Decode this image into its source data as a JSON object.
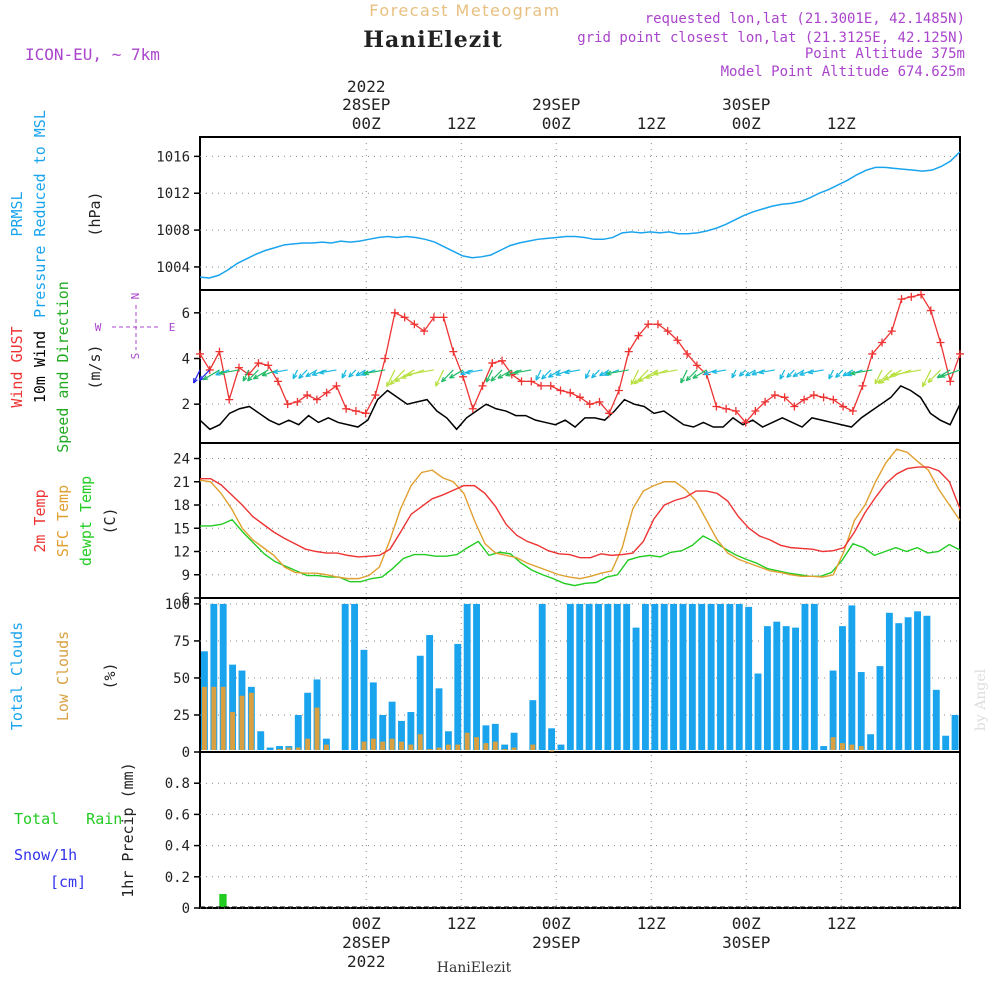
{
  "header": {
    "forecast_title": "Forecast Meteogram",
    "location": "HaniElezit",
    "model": "ICON-EU, ~ 7km",
    "requested": "requested lon,lat (21.3001E, 42.1485N)",
    "gridpoint": "grid point closest lon,lat (21.3125E, 42.125N)",
    "point_alt": "Point Altitude 375m",
    "model_alt": "Model Point Altitude 674.625m",
    "footer": "HaniElezit",
    "credit": "by Angel"
  },
  "time_axis": {
    "start_hour": -21,
    "end_hour": 75,
    "ticks": [
      {
        "h": 0,
        "label": "00Z",
        "date": "28SEP",
        "year": "2022"
      },
      {
        "h": 12,
        "label": "12Z"
      },
      {
        "h": 24,
        "label": "00Z",
        "date": "29SEP"
      },
      {
        "h": 36,
        "label": "12Z"
      },
      {
        "h": 48,
        "label": "00Z",
        "date": "30SEP"
      },
      {
        "h": 60,
        "label": "12Z"
      }
    ]
  },
  "colors": {
    "pressure": "#1aa4ee",
    "gust": "#ee3333",
    "wind": "#000000",
    "dir": "#22aa22",
    "temp": "#ee3333",
    "sfc": "#e0a030",
    "dew": "#22cc22",
    "total_clouds": "#1aa4ee",
    "low_clouds": "#d8a040",
    "rain": "#22cc22",
    "snow": "#3333ee",
    "title": "#e8c080",
    "meta": "#aa44cc"
  },
  "chart_data": [
    {
      "type": "line",
      "id": "pressure",
      "ylabels": [
        "PRMSL",
        "Pressure Reduced to MSL",
        "(hPa)"
      ],
      "yticks": [
        1004,
        1008,
        1012,
        1016
      ],
      "ylim": [
        1001.5,
        1018.1
      ],
      "series": [
        {
          "name": "PRMSL",
          "values": [
            1002.9,
            1002.8,
            1003.1,
            1003.7,
            1004.4,
            1004.9,
            1005.4,
            1005.8,
            1006.1,
            1006.4,
            1006.5,
            1006.6,
            1006.6,
            1006.7,
            1006.6,
            1006.8,
            1006.7,
            1006.8,
            1007.0,
            1007.2,
            1007.3,
            1007.2,
            1007.3,
            1007.2,
            1007.0,
            1006.7,
            1006.2,
            1005.7,
            1005.2,
            1005.0,
            1005.1,
            1005.3,
            1005.8,
            1006.3,
            1006.6,
            1006.8,
            1007.0,
            1007.1,
            1007.2,
            1007.3,
            1007.3,
            1007.2,
            1007.0,
            1007.0,
            1007.2,
            1007.7,
            1007.8,
            1007.7,
            1007.8,
            1007.7,
            1007.8,
            1007.6,
            1007.6,
            1007.7,
            1007.9,
            1008.2,
            1008.6,
            1009.1,
            1009.6,
            1010.0,
            1010.3,
            1010.6,
            1010.8,
            1010.9,
            1011.1,
            1011.5,
            1012.0,
            1012.4,
            1012.9,
            1013.4,
            1014.0,
            1014.5,
            1014.8,
            1014.8,
            1014.7,
            1014.6,
            1014.5,
            1014.4,
            1014.5,
            1014.9,
            1015.5,
            1016.5
          ]
        }
      ]
    },
    {
      "type": "line",
      "id": "wind",
      "ylabels": [
        "Wind GUST",
        "10m Wind",
        "Speed and Direction",
        "(m/s)"
      ],
      "compass": {
        "n": "N",
        "s": "S",
        "w": "W",
        "e": "E"
      },
      "yticks": [
        2,
        4,
        6
      ],
      "ylim": [
        0.3,
        7.0
      ],
      "series": [
        {
          "name": "Wind GUST",
          "values": [
            4.2,
            3.5,
            4.3,
            2.2,
            3.6,
            3.3,
            3.8,
            3.7,
            3.0,
            2.0,
            2.1,
            2.4,
            2.2,
            2.5,
            2.8,
            1.8,
            1.7,
            1.6,
            2.4,
            4.0,
            6.0,
            5.8,
            5.5,
            5.2,
            5.8,
            5.8,
            4.3,
            3.2,
            1.8,
            2.8,
            3.8,
            3.9,
            3.3,
            3.0,
            3.0,
            2.8,
            2.8,
            2.6,
            2.5,
            2.3,
            2.0,
            2.1,
            1.6,
            2.6,
            4.3,
            5.0,
            5.5,
            5.5,
            5.2,
            4.8,
            4.2,
            3.7,
            3.3,
            1.9,
            1.8,
            1.7,
            1.2,
            1.7,
            2.1,
            2.4,
            2.3,
            1.9,
            2.2,
            2.4,
            2.3,
            2.2,
            1.9,
            1.7,
            2.8,
            4.2,
            4.7,
            5.2,
            6.6,
            6.7,
            6.8,
            6.1,
            4.7,
            3.0,
            4.2
          ]
        },
        {
          "name": "10m Wind",
          "values": [
            1.3,
            0.9,
            1.1,
            1.6,
            1.8,
            1.9,
            1.6,
            1.3,
            1.1,
            1.3,
            1.1,
            1.5,
            1.2,
            1.4,
            1.2,
            1.1,
            1.0,
            1.3,
            2.2,
            2.6,
            2.3,
            2.0,
            2.1,
            2.2,
            1.7,
            1.4,
            0.9,
            1.4,
            1.7,
            2.0,
            1.8,
            1.7,
            1.5,
            1.5,
            1.3,
            1.2,
            1.1,
            1.3,
            1.0,
            1.4,
            1.4,
            1.3,
            1.7,
            2.2,
            2.0,
            1.9,
            1.6,
            1.7,
            1.4,
            1.1,
            1.0,
            1.2,
            1.0,
            1.0,
            1.4,
            1.1,
            1.3,
            1.0,
            1.2,
            1.4,
            1.2,
            1.0,
            1.4,
            1.3,
            1.2,
            1.1,
            1.0,
            1.4,
            1.7,
            2.0,
            2.3,
            2.8,
            2.6,
            2.3,
            1.6,
            1.3,
            1.1,
            2.0
          ]
        }
      ],
      "arrows": {
        "y": 3.5,
        "start": -21,
        "step": 1
      }
    },
    {
      "type": "line",
      "id": "temperature",
      "ylabels": [
        "2m Temp",
        "SFC Temp",
        "dewpt Temp",
        "(C)"
      ],
      "yticks": [
        6,
        9,
        12,
        15,
        18,
        21,
        24
      ],
      "ylim": [
        6,
        26
      ],
      "series": [
        {
          "name": "2m Temp",
          "values": [
            21.4,
            21.4,
            20.6,
            19.3,
            18.0,
            16.5,
            15.5,
            14.5,
            13.7,
            13.0,
            12.3,
            12.0,
            11.8,
            11.8,
            11.5,
            11.3,
            11.4,
            11.5,
            12.3,
            14.5,
            16.8,
            17.8,
            18.8,
            19.3,
            19.9,
            20.5,
            20.5,
            19.5,
            17.8,
            15.5,
            14.1,
            13.3,
            12.8,
            12.1,
            11.7,
            11.6,
            11.2,
            11.2,
            11.7,
            11.5,
            11.6,
            11.8,
            13.3,
            16.2,
            18.0,
            18.6,
            19.0,
            19.8,
            19.8,
            19.5,
            18.5,
            16.5,
            15.0,
            14.0,
            13.5,
            12.8,
            12.5,
            12.4,
            12.3,
            12.0,
            12.1,
            12.5,
            14.5,
            17.0,
            19.0,
            20.8,
            22.0,
            22.7,
            22.9,
            22.9,
            22.4,
            21.0,
            17.5
          ]
        },
        {
          "name": "SFC Temp",
          "values": [
            21.2,
            21.0,
            19.5,
            17.5,
            15.0,
            13.5,
            12.5,
            11.5,
            10.0,
            9.3,
            9.2,
            9.2,
            9.0,
            8.7,
            8.5,
            8.5,
            8.9,
            10.0,
            13.5,
            17.5,
            20.5,
            22.2,
            22.5,
            21.5,
            21.0,
            19.5,
            16.0,
            13.0,
            11.8,
            11.5,
            11.2,
            10.5,
            10.0,
            9.5,
            9.0,
            8.7,
            8.5,
            8.8,
            9.2,
            9.5,
            12.5,
            17.5,
            19.8,
            20.5,
            21.0,
            21.0,
            20.0,
            18.5,
            16.0,
            13.5,
            11.8,
            11.0,
            10.5,
            10.0,
            9.5,
            9.3,
            9.0,
            8.8,
            8.8,
            8.7,
            9.0,
            12.0,
            16.0,
            18.0,
            21.0,
            23.5,
            25.2,
            24.8,
            23.6,
            22.5,
            20.0,
            18.0,
            16.0
          ]
        },
        {
          "name": "dewpt Temp",
          "values": [
            15.3,
            15.3,
            15.5,
            16.1,
            14.5,
            13.1,
            11.7,
            10.7,
            10.1,
            9.5,
            8.9,
            8.9,
            8.7,
            8.7,
            8.1,
            8.1,
            8.5,
            8.7,
            9.8,
            11.1,
            11.6,
            11.6,
            11.4,
            11.4,
            11.6,
            12.5,
            13.3,
            11.5,
            11.9,
            11.7,
            10.5,
            9.6,
            9.0,
            8.5,
            7.9,
            7.6,
            7.9,
            8.0,
            8.7,
            9.0,
            10.9,
            11.3,
            11.5,
            11.3,
            11.9,
            12.1,
            12.8,
            14.0,
            13.3,
            12.4,
            11.6,
            11.0,
            10.5,
            9.8,
            9.5,
            9.2,
            9.0,
            8.8,
            8.8,
            9.3,
            10.9,
            13.0,
            12.5,
            11.5,
            12.0,
            12.5,
            12.0,
            12.5,
            11.8,
            12.0,
            12.9,
            12.2
          ]
        }
      ]
    },
    {
      "type": "bar",
      "id": "clouds",
      "ylabels": [
        "Total Clouds",
        "Low Clouds",
        "(%)"
      ],
      "yticks": [
        0,
        25,
        50,
        75,
        100
      ],
      "ylim": [
        0,
        104
      ],
      "series": [
        {
          "name": "Total Clouds",
          "values": [
            68,
            100,
            100,
            59,
            55,
            44,
            14,
            3,
            4,
            4,
            25,
            40,
            49,
            9,
            0,
            100,
            100,
            69,
            47,
            25,
            34,
            21,
            27,
            65,
            79,
            43,
            14,
            73,
            100,
            100,
            18,
            19,
            5,
            13,
            0,
            35,
            100,
            16,
            5,
            100,
            100,
            100,
            100,
            100,
            100,
            100,
            84,
            100,
            100,
            100,
            100,
            100,
            100,
            100,
            100,
            100,
            100,
            100,
            98,
            53,
            85,
            88,
            85,
            84,
            100,
            100,
            4,
            55,
            85,
            99,
            54,
            12,
            58,
            94,
            87,
            91,
            95,
            92,
            42,
            11,
            25
          ]
        },
        {
          "name": "Low Clouds",
          "values": [
            44,
            44,
            44,
            27,
            38,
            40,
            0,
            0,
            2,
            3,
            3,
            9,
            30,
            5,
            0,
            0,
            0,
            7,
            9,
            7,
            9,
            7,
            5,
            12,
            2,
            3,
            5,
            5,
            13,
            10,
            6,
            7,
            2,
            3,
            0,
            5,
            0,
            1,
            0,
            0,
            0,
            0,
            0,
            0,
            0,
            0,
            0,
            0,
            0,
            0,
            0,
            0,
            0,
            0,
            0,
            0,
            0,
            0,
            0,
            0,
            0,
            0,
            0,
            0,
            0,
            0,
            0,
            10,
            6,
            5,
            4,
            0,
            0,
            0,
            0,
            0,
            0,
            0,
            0,
            0,
            0
          ]
        }
      ]
    },
    {
      "type": "bar",
      "id": "precip",
      "ylabels": [
        "Total Rain",
        "Snow/1h",
        "[cm]",
        "1hr Precip (mm)"
      ],
      "yticks": [
        0,
        0.2,
        0.4,
        0.6,
        0.8
      ],
      "ylim": [
        0,
        1.0
      ],
      "series": [
        {
          "name": "Total Rain",
          "values": [
            0,
            0,
            0.09
          ]
        }
      ]
    }
  ]
}
